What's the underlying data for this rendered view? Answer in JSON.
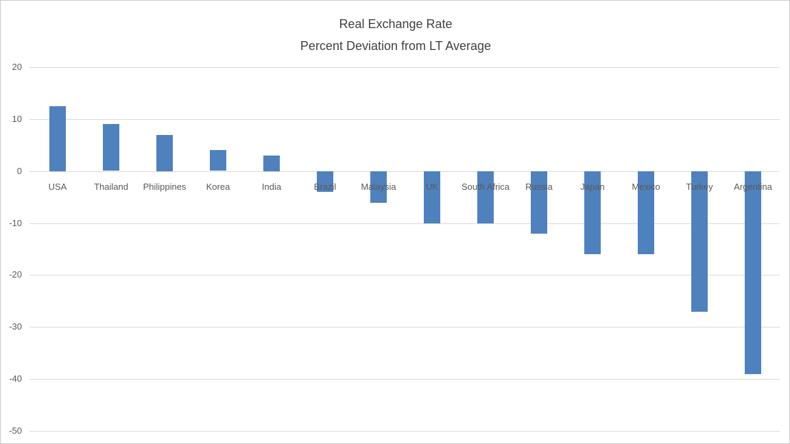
{
  "chart_data": {
    "type": "bar",
    "title": "Real Exchange Rate",
    "subtitle": "Percent Deviation from LT Average",
    "categories": [
      "USA",
      "Thailand",
      "Philippines",
      "Korea",
      "India",
      "Brazil",
      "Malaysia",
      "UK",
      "South Africa",
      "Russia",
      "Japan",
      "Mexico",
      "Turkey",
      "Argentina"
    ],
    "values": [
      12.5,
      9,
      7,
      4,
      3,
      -4,
      -6,
      -10,
      -10,
      -12,
      -16,
      -16,
      -27,
      -39
    ],
    "xlabel": "",
    "ylabel": "",
    "ylim": [
      -50,
      20
    ],
    "yticks": [
      20,
      10,
      0,
      -10,
      -20,
      -30,
      -40,
      -50
    ],
    "grid": true,
    "legend_position": "none",
    "colors": {
      "bar": "#4f81bd",
      "gridline": "#d9d9d9",
      "axis_text": "#595959",
      "title_text": "#404040",
      "background": "#ffffff"
    }
  }
}
